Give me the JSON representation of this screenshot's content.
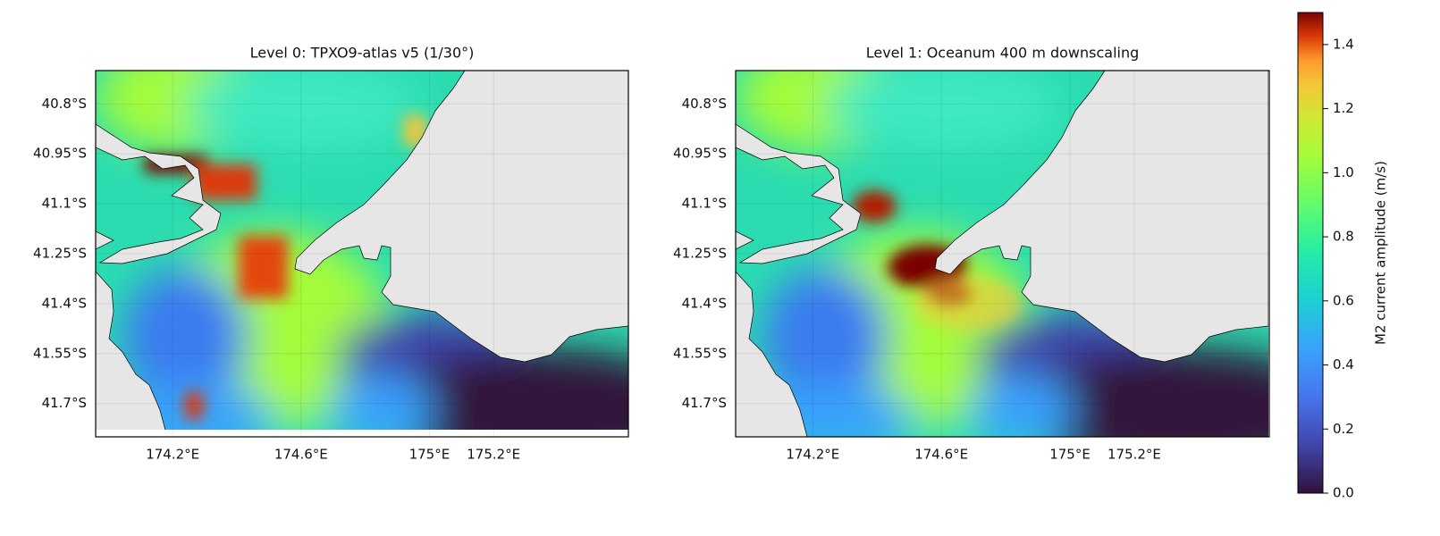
{
  "maps": [
    {
      "title": "Level 0: TPXO9-atlas v5 (1/30°)",
      "xlim": [
        173.96,
        175.62
      ],
      "ylim": [
        -41.8,
        -40.7
      ],
      "xticks": [
        {
          "value": 174.2,
          "label": "174.2°E"
        },
        {
          "value": 174.6,
          "label": "174.6°E"
        },
        {
          "value": 175,
          "label": "175°E"
        },
        {
          "value": 175.2,
          "label": "175.2°E"
        }
      ],
      "yticks": [
        {
          "value": -40.8,
          "label": "40.8°S"
        },
        {
          "value": -40.95,
          "label": "40.95°S"
        },
        {
          "value": -41.1,
          "label": "41.1°S"
        },
        {
          "value": -41.25,
          "label": "41.25°S"
        },
        {
          "value": -41.4,
          "label": "41.4°S"
        },
        {
          "value": -41.55,
          "label": "41.55°S"
        },
        {
          "value": -41.7,
          "label": "41.7°S"
        }
      ]
    },
    {
      "title": "Level 1: Oceanum 400 m downscaling",
      "xlim": [
        173.96,
        175.62
      ],
      "ylim": [
        -41.8,
        -40.7
      ],
      "xticks": [
        {
          "value": 174.2,
          "label": "174.2°E"
        },
        {
          "value": 174.6,
          "label": "174.6°E"
        },
        {
          "value": 175,
          "label": "175°E"
        },
        {
          "value": 175.2,
          "label": "175.2°E"
        }
      ],
      "yticks": [
        {
          "value": -40.8,
          "label": "40.8°S"
        },
        {
          "value": -40.95,
          "label": "40.95°S"
        },
        {
          "value": -41.1,
          "label": "41.1°S"
        },
        {
          "value": -41.25,
          "label": "41.25°S"
        },
        {
          "value": -41.4,
          "label": "41.4°S"
        },
        {
          "value": -41.55,
          "label": "41.55°S"
        },
        {
          "value": -41.7,
          "label": "41.7°S"
        }
      ]
    }
  ],
  "colorbar": {
    "label": "M2 current amplitude (m/s)",
    "lim": [
      0,
      1.5
    ],
    "ticks": [
      {
        "value": 0,
        "label": "0.0"
      },
      {
        "value": 0.2,
        "label": "0.2"
      },
      {
        "value": 0.4,
        "label": "0.4"
      },
      {
        "value": 0.6,
        "label": "0.6"
      },
      {
        "value": 0.8,
        "label": "0.8"
      },
      {
        "value": 1,
        "label": "1.0"
      },
      {
        "value": 1.2,
        "label": "1.2"
      },
      {
        "value": 1.4,
        "label": "1.4"
      }
    ]
  }
}
